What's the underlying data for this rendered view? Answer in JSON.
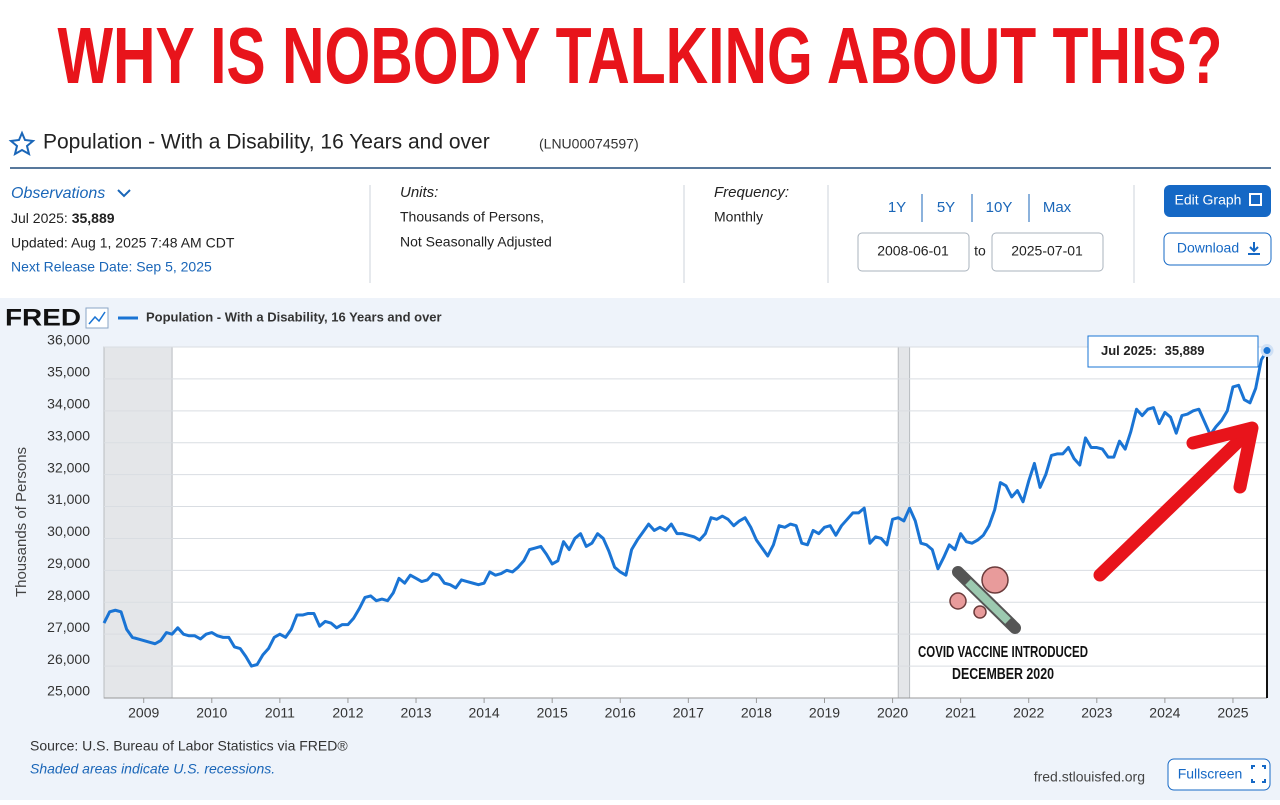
{
  "headline": "WHY IS NOBODY TALKING ABOUT THIS?",
  "series_title": "Population - With a Disability, 16 Years and over",
  "series_id": "(LNU00074597)",
  "observations": {
    "label": "Observations",
    "latest_date": "Jul 2025:",
    "latest_value": "35,889",
    "updated": "Updated: Aug 1, 2025 7:48 AM CDT",
    "next_release": "Next Release Date: Sep 5, 2025"
  },
  "units": {
    "label": "Units:",
    "lines": [
      "Thousands of Persons,",
      "Not Seasonally Adjusted"
    ]
  },
  "frequency": {
    "label": "Frequency:",
    "value": "Monthly"
  },
  "range": {
    "buttons": [
      "1Y",
      "5Y",
      "10Y",
      "Max"
    ],
    "start": "2008-06-01",
    "to": "to",
    "end": "2025-07-01"
  },
  "actions": [
    "Edit Graph",
    "Download"
  ],
  "logo": "FRED",
  "footer": {
    "source": "Source: U.S. Bureau of Labor Statistics via FRED®",
    "recessions_note": "Shaded areas indicate U.S. recessions.",
    "site": "fred.stlouisfed.org",
    "fullscreen": "Fullscreen"
  },
  "chart_data": {
    "type": "line",
    "ylabel": "Thousands of Persons",
    "grid": true,
    "xlim": [
      "2008-06",
      "2025-07"
    ],
    "ylim": [
      25000,
      36000
    ],
    "yticks": [
      {
        "value": 25000,
        "label": "25,000"
      },
      {
        "value": 26000,
        "label": "26,000"
      },
      {
        "value": 27000,
        "label": "27,000"
      },
      {
        "value": 28000,
        "label": "28,000"
      },
      {
        "value": 29000,
        "label": "29,000"
      },
      {
        "value": 30000,
        "label": "30,000"
      },
      {
        "value": 31000,
        "label": "31,000"
      },
      {
        "value": 32000,
        "label": "32,000"
      },
      {
        "value": 33000,
        "label": "33,000"
      },
      {
        "value": 34000,
        "label": "34,000"
      },
      {
        "value": 35000,
        "label": "35,000"
      },
      {
        "value": 36000,
        "label": "36,000"
      }
    ],
    "xticks": [
      {
        "value": "2009-01",
        "label": "2009"
      },
      {
        "value": "2010-01",
        "label": "2010"
      },
      {
        "value": "2011-01",
        "label": "2011"
      },
      {
        "value": "2012-01",
        "label": "2012"
      },
      {
        "value": "2013-01",
        "label": "2013"
      },
      {
        "value": "2014-01",
        "label": "2014"
      },
      {
        "value": "2015-01",
        "label": "2015"
      },
      {
        "value": "2016-01",
        "label": "2016"
      },
      {
        "value": "2017-01",
        "label": "2017"
      },
      {
        "value": "2018-01",
        "label": "2018"
      },
      {
        "value": "2019-01",
        "label": "2019"
      },
      {
        "value": "2020-01",
        "label": "2020"
      },
      {
        "value": "2021-01",
        "label": "2021"
      },
      {
        "value": "2022-01",
        "label": "2022"
      },
      {
        "value": "2023-01",
        "label": "2023"
      },
      {
        "value": "2024-01",
        "label": "2024"
      },
      {
        "value": "2025-01",
        "label": "2025"
      }
    ],
    "recessions": [
      [
        "2008-06",
        "2009-06"
      ],
      [
        "2020-02",
        "2020-04"
      ]
    ],
    "annotation": [
      "COVID VACCINE INTRODUCED",
      "DECEMBER 2020"
    ],
    "tooltip": {
      "label": "Jul 2025:",
      "value": "35,889"
    },
    "x": [
      "2008-06",
      "2008-07",
      "2008-08",
      "2008-09",
      "2008-10",
      "2008-11",
      "2008-12",
      "2009-01",
      "2009-02",
      "2009-03",
      "2009-04",
      "2009-05",
      "2009-06",
      "2009-07",
      "2009-08",
      "2009-09",
      "2009-10",
      "2009-11",
      "2009-12",
      "2010-01",
      "2010-02",
      "2010-03",
      "2010-04",
      "2010-05",
      "2010-06",
      "2010-07",
      "2010-08",
      "2010-09",
      "2010-10",
      "2010-11",
      "2010-12",
      "2011-01",
      "2011-02",
      "2011-03",
      "2011-04",
      "2011-05",
      "2011-06",
      "2011-07",
      "2011-08",
      "2011-09",
      "2011-10",
      "2011-11",
      "2011-12",
      "2012-01",
      "2012-02",
      "2012-03",
      "2012-04",
      "2012-05",
      "2012-06",
      "2012-07",
      "2012-08",
      "2012-09",
      "2012-10",
      "2012-11",
      "2012-12",
      "2013-01",
      "2013-02",
      "2013-03",
      "2013-04",
      "2013-05",
      "2013-06",
      "2013-07",
      "2013-08",
      "2013-09",
      "2013-10",
      "2013-11",
      "2013-12",
      "2014-01",
      "2014-02",
      "2014-03",
      "2014-04",
      "2014-05",
      "2014-06",
      "2014-07",
      "2014-08",
      "2014-09",
      "2014-10",
      "2014-11",
      "2014-12",
      "2015-01",
      "2015-02",
      "2015-03",
      "2015-04",
      "2015-05",
      "2015-06",
      "2015-07",
      "2015-08",
      "2015-09",
      "2015-10",
      "2015-11",
      "2015-12",
      "2016-01",
      "2016-02",
      "2016-03",
      "2016-04",
      "2016-05",
      "2016-06",
      "2016-07",
      "2016-08",
      "2016-09",
      "2016-10",
      "2016-11",
      "2016-12",
      "2017-01",
      "2017-02",
      "2017-03",
      "2017-04",
      "2017-05",
      "2017-06",
      "2017-07",
      "2017-08",
      "2017-09",
      "2017-10",
      "2017-11",
      "2017-12",
      "2018-01",
      "2018-02",
      "2018-03",
      "2018-04",
      "2018-05",
      "2018-06",
      "2018-07",
      "2018-08",
      "2018-09",
      "2018-10",
      "2018-11",
      "2018-12",
      "2019-01",
      "2019-02",
      "2019-03",
      "2019-04",
      "2019-05",
      "2019-06",
      "2019-07",
      "2019-08",
      "2019-09",
      "2019-10",
      "2019-11",
      "2019-12",
      "2020-01",
      "2020-02",
      "2020-03",
      "2020-04",
      "2020-05",
      "2020-06",
      "2020-07",
      "2020-08",
      "2020-09",
      "2020-10",
      "2020-11",
      "2020-12",
      "2021-01",
      "2021-02",
      "2021-03",
      "2021-04",
      "2021-05",
      "2021-06",
      "2021-07",
      "2021-08",
      "2021-09",
      "2021-10",
      "2021-11",
      "2021-12",
      "2022-01",
      "2022-02",
      "2022-03",
      "2022-04",
      "2022-05",
      "2022-06",
      "2022-07",
      "2022-08",
      "2022-09",
      "2022-10",
      "2022-11",
      "2022-12",
      "2023-01",
      "2023-02",
      "2023-03",
      "2023-04",
      "2023-05",
      "2023-06",
      "2023-07",
      "2023-08",
      "2023-09",
      "2023-10",
      "2023-11",
      "2023-12",
      "2024-01",
      "2024-02",
      "2024-03",
      "2024-04",
      "2024-05",
      "2024-06",
      "2024-07",
      "2024-08",
      "2024-09",
      "2024-10",
      "2024-11",
      "2024-12",
      "2025-01",
      "2025-02",
      "2025-03",
      "2025-04",
      "2025-05",
      "2025-06",
      "2025-07"
    ],
    "series": [
      {
        "name": "Population - With a Disability, 16 Years and over",
        "color": "#1a74d4",
        "values": [
          27350,
          27700,
          27750,
          27700,
          27150,
          26900,
          26850,
          26800,
          26750,
          26700,
          26800,
          27050,
          27000,
          27200,
          27000,
          26950,
          26950,
          26850,
          27000,
          27050,
          26950,
          26900,
          26900,
          26600,
          26550,
          26300,
          26000,
          26050,
          26350,
          26550,
          26900,
          27000,
          26900,
          27150,
          27600,
          27600,
          27650,
          27650,
          27250,
          27400,
          27350,
          27200,
          27300,
          27300,
          27500,
          27800,
          28150,
          28200,
          28050,
          28100,
          28050,
          28300,
          28750,
          28600,
          28850,
          28750,
          28650,
          28700,
          28900,
          28850,
          28600,
          28550,
          28450,
          28700,
          28650,
          28600,
          28550,
          28600,
          28950,
          28850,
          28900,
          29000,
          28950,
          29100,
          29300,
          29650,
          29700,
          29750,
          29500,
          29200,
          29300,
          29900,
          29650,
          30000,
          30150,
          29750,
          29850,
          30150,
          30000,
          29600,
          29100,
          28950,
          28850,
          29650,
          29950,
          30200,
          30450,
          30250,
          30350,
          30250,
          30450,
          30150,
          30150,
          30100,
          30050,
          29950,
          30150,
          30650,
          30600,
          30700,
          30600,
          30400,
          30550,
          30650,
          30350,
          29950,
          29700,
          29450,
          29800,
          30400,
          30350,
          30450,
          30400,
          29850,
          29800,
          30250,
          30150,
          30350,
          30400,
          30100,
          30400,
          30600,
          30800,
          30800,
          30950,
          29850,
          30050,
          30000,
          29800,
          30600,
          30650,
          30550,
          30950,
          30550,
          29850,
          29800,
          29650,
          29050,
          29400,
          29800,
          29650,
          30150,
          29900,
          29850,
          29950,
          30100,
          30400,
          30900,
          31750,
          31650,
          31300,
          31500,
          31150,
          31800,
          32350,
          31600,
          32000,
          32600,
          32650,
          32650,
          32850,
          32500,
          32300,
          33150,
          32850,
          32850,
          32800,
          32550,
          32550,
          33050,
          32800,
          33350,
          34050,
          33850,
          34050,
          34100,
          33600,
          33950,
          33800,
          33300,
          33850,
          33900,
          34000,
          34050,
          33650,
          33250,
          33500,
          33700,
          34000,
          34750,
          34800,
          34350,
          34250,
          34700,
          35600,
          35889
        ]
      }
    ]
  }
}
